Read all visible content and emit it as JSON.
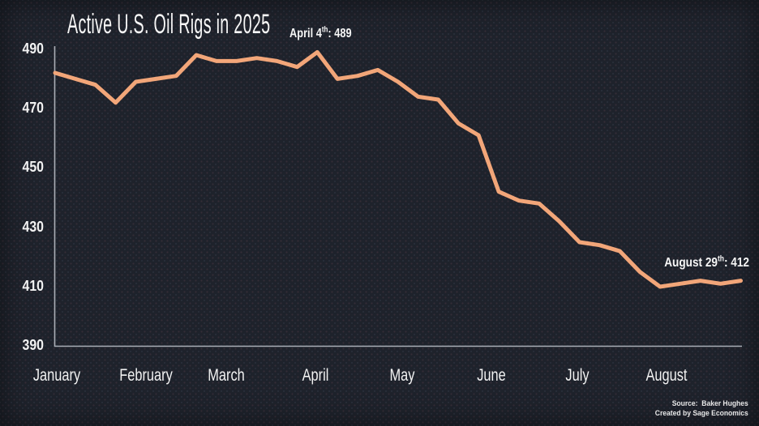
{
  "title": "Active U.S. Oil Rigs in 2025",
  "annotations": {
    "peak": {
      "prefix": "April 4",
      "sup": "th",
      "suffix": ": 489"
    },
    "latest": {
      "prefix": "August 29",
      "sup": "th",
      "suffix": ": 412"
    }
  },
  "source": {
    "line1": "Source:  Baker Hughes",
    "line2": "Created by Sage Economics"
  },
  "colors": {
    "background": "#1e222b",
    "line": "#f2a679",
    "axis": "#a9aeb6",
    "text": "#f4f4f4"
  },
  "chart_data": {
    "type": "line",
    "title": "Active U.S. Oil Rigs in 2025",
    "x_labels": [
      "January",
      "February",
      "March",
      "April",
      "May",
      "June",
      "July",
      "August"
    ],
    "x_unit": "week",
    "values": [
      482,
      480,
      478,
      472,
      479,
      480,
      481,
      488,
      486,
      486,
      487,
      486,
      484,
      489,
      480,
      481,
      483,
      479,
      474,
      473,
      465,
      461,
      442,
      439,
      438,
      432,
      425,
      424,
      422,
      415,
      410,
      411,
      412,
      411,
      412
    ],
    "yticks": [
      390,
      410,
      430,
      450,
      470,
      490
    ],
    "ylim": [
      390,
      490
    ],
    "grid": false,
    "legend": false,
    "annotated_points": [
      {
        "label": "April 4th",
        "value": 489
      },
      {
        "label": "August 29th",
        "value": 412
      }
    ]
  }
}
